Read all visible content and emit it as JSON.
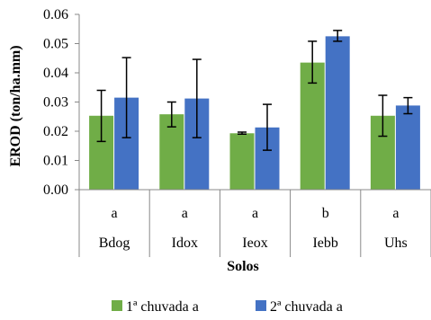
{
  "chart_data": {
    "type": "bar",
    "ylabel": "EROD (ton/ha.mm)",
    "xlabel": "Solos",
    "ylim": [
      0,
      0.06
    ],
    "yticks": [
      "0.00",
      "0.01",
      "0.02",
      "0.03",
      "0.04",
      "0.05",
      "0.06"
    ],
    "categories": [
      {
        "letter": "a",
        "name": "Bdog"
      },
      {
        "letter": "a",
        "name": "Idox"
      },
      {
        "letter": "a",
        "name": "Ieox"
      },
      {
        "letter": "b",
        "name": "Iebb"
      },
      {
        "letter": "a",
        "name": "Uhs"
      }
    ],
    "series": [
      {
        "name": "1ª chuvada a",
        "color": "#70ad47",
        "values": [
          0.0253,
          0.0258,
          0.0193,
          0.0435,
          0.0253
        ],
        "error_low": [
          0.0165,
          0.0215,
          0.019,
          0.0365,
          0.0183
        ],
        "error_high": [
          0.034,
          0.03,
          0.0197,
          0.0508,
          0.0323
        ]
      },
      {
        "name": "2ª chuvada a",
        "color": "#4472c4",
        "values": [
          0.0315,
          0.0312,
          0.0213,
          0.0525,
          0.0288
        ],
        "error_low": [
          0.0178,
          0.0178,
          0.0135,
          0.0508,
          0.026
        ],
        "error_high": [
          0.0452,
          0.0446,
          0.0292,
          0.0545,
          0.0315
        ]
      }
    ],
    "grid": false,
    "legend": "bottom"
  }
}
